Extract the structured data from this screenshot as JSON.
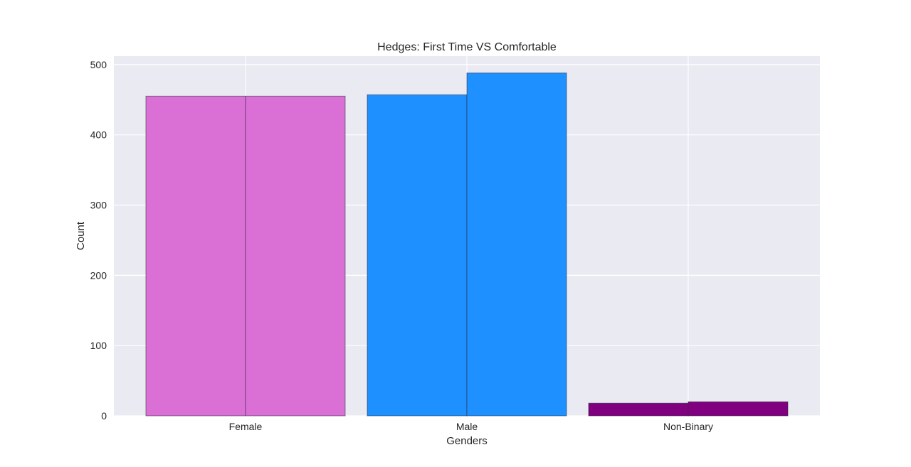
{
  "chart_data": {
    "type": "bar",
    "title": "Hedges: First Time VS Comfortable",
    "xlabel": "Genders",
    "ylabel": "Count",
    "categories": [
      "Female",
      "Male",
      "Non-Binary"
    ],
    "series": [
      {
        "values": [
          455,
          457,
          18
        ]
      },
      {
        "values": [
          455,
          488,
          20
        ]
      }
    ],
    "bar_colors": [
      "#DA70D6",
      "#1E90FF",
      "#800080"
    ],
    "ylim": [
      0,
      512
    ],
    "yticks": [
      0,
      100,
      200,
      300,
      400,
      500
    ],
    "grid": true,
    "background": "#EAEAF2",
    "gridColor": "#FFFFFF"
  }
}
